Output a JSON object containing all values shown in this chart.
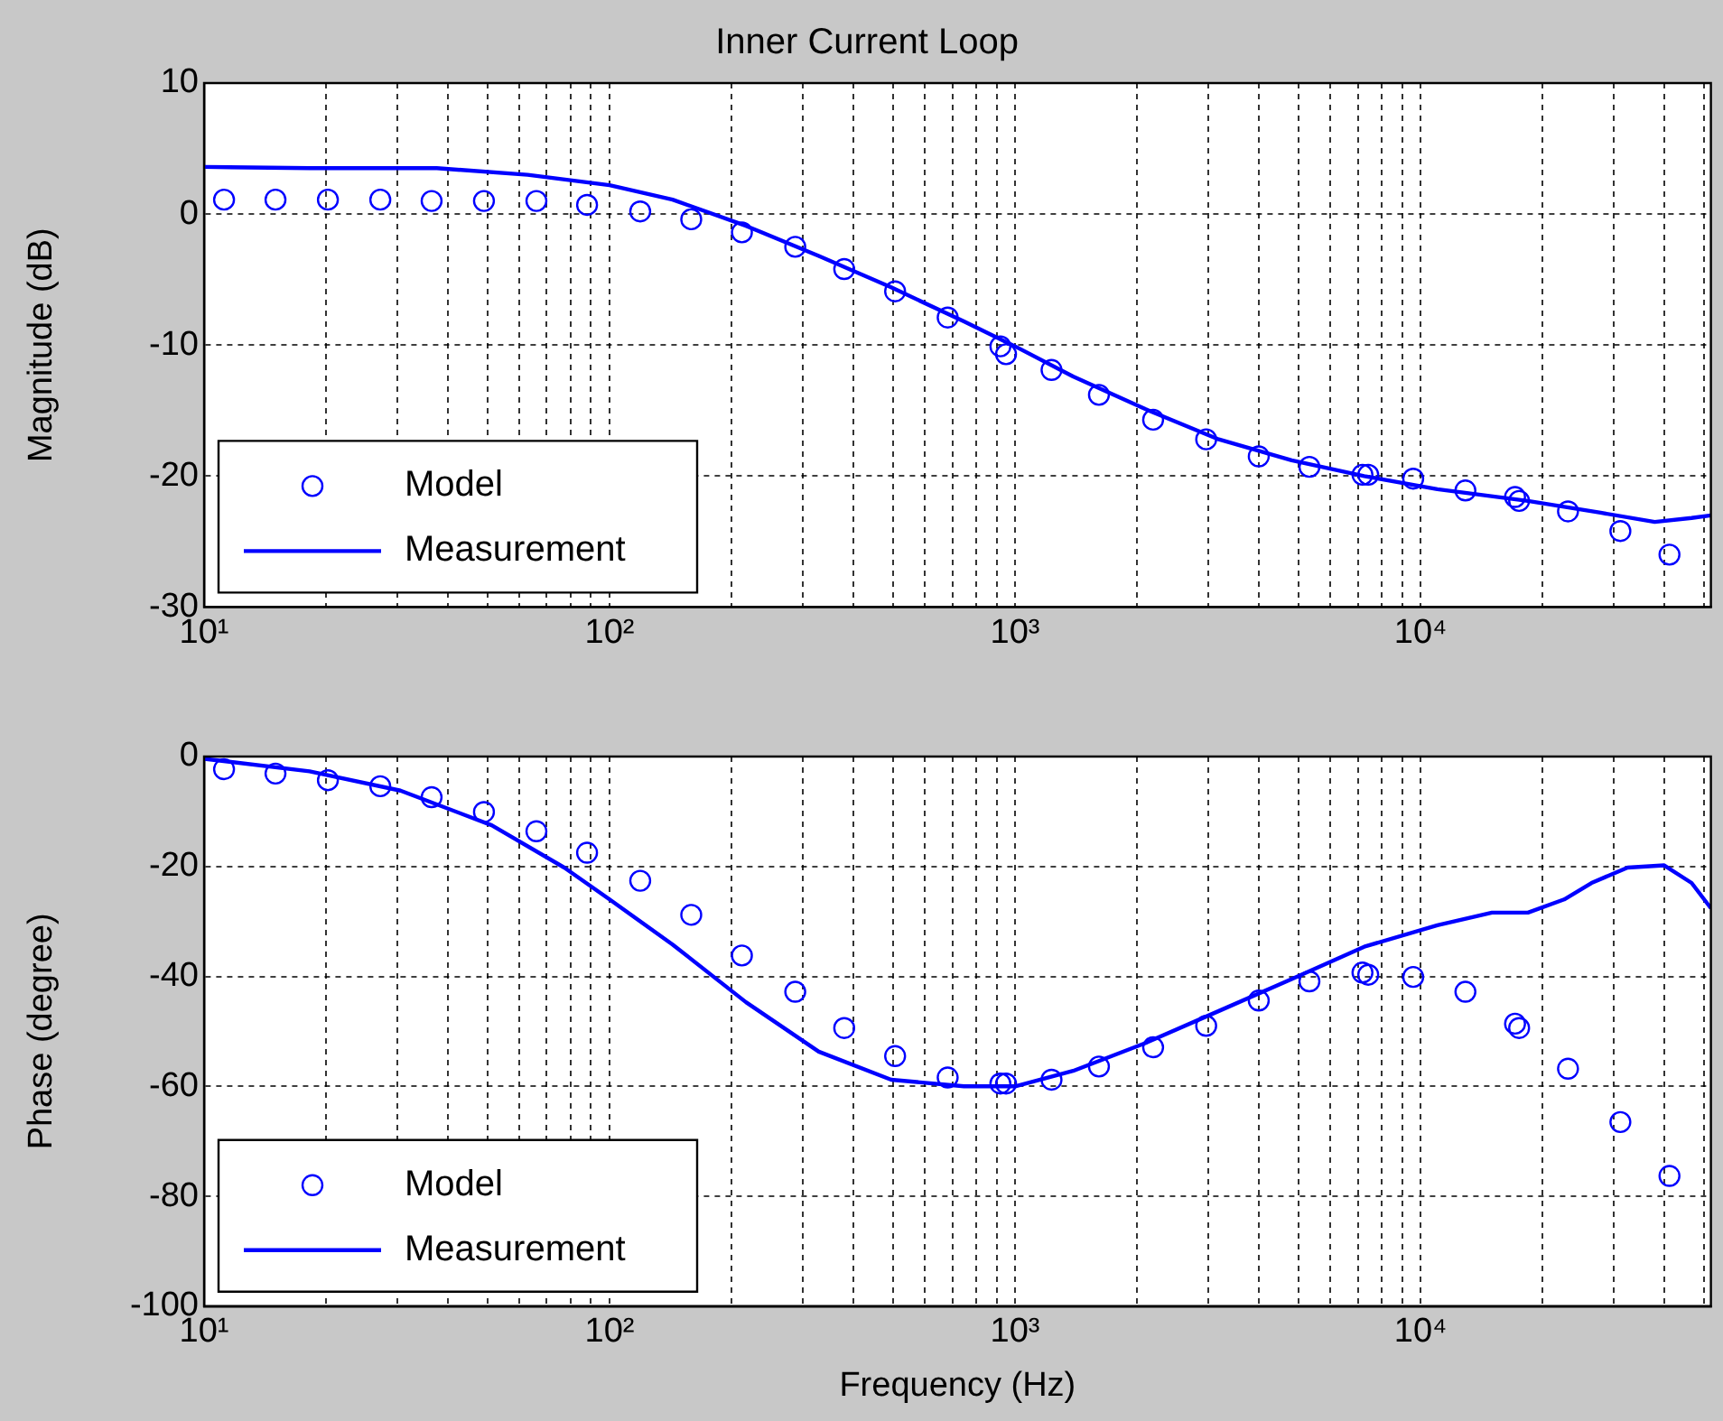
{
  "chart_data": [
    {
      "type": "line",
      "title": "Inner Current Loop",
      "ylabel": "Magnitude (dB)",
      "log": "x",
      "grid": true,
      "legend": "bottom left",
      "xlim": [
        10,
        52000
      ],
      "ylim": [
        -30,
        10
      ],
      "yticks": [
        -30,
        -20,
        -10,
        0,
        10
      ],
      "xticks": [
        {
          "value": 10,
          "label": "10¹"
        },
        {
          "value": 20,
          "label": null
        },
        {
          "value": 30,
          "label": null
        },
        {
          "value": 40,
          "label": null
        },
        {
          "value": 50,
          "label": null
        },
        {
          "value": 60,
          "label": null
        },
        {
          "value": 70,
          "label": null
        },
        {
          "value": 80,
          "label": null
        },
        {
          "value": 90,
          "label": null
        },
        {
          "value": 100,
          "label": "10²"
        },
        {
          "value": 200,
          "label": null
        },
        {
          "value": 300,
          "label": null
        },
        {
          "value": 400,
          "label": null
        },
        {
          "value": 500,
          "label": null
        },
        {
          "value": 600,
          "label": null
        },
        {
          "value": 700,
          "label": null
        },
        {
          "value": 800,
          "label": null
        },
        {
          "value": 900,
          "label": null
        },
        {
          "value": 1000,
          "label": "10³"
        },
        {
          "value": 2000,
          "label": null
        },
        {
          "value": 3000,
          "label": null
        },
        {
          "value": 4000,
          "label": null
        },
        {
          "value": 5000,
          "label": null
        },
        {
          "value": 6000,
          "label": null
        },
        {
          "value": 7000,
          "label": null
        },
        {
          "value": 8000,
          "label": null
        },
        {
          "value": 9000,
          "label": null
        },
        {
          "value": 10000,
          "label": "10⁴"
        },
        {
          "value": 20000,
          "label": null
        },
        {
          "value": 30000,
          "label": null
        },
        {
          "value": 40000,
          "label": null
        },
        {
          "value": 50000,
          "label": null
        }
      ],
      "series": [
        {
          "name": "Model",
          "type": "scatter",
          "marker": "circle",
          "color": "#0000ff",
          "x": [
            11.2,
            15,
            20.2,
            27.2,
            36.4,
            49,
            66,
            88,
            119,
            159,
            212,
            287,
            379,
            506,
            682,
            920,
            950,
            1230,
            1610,
            2190,
            2960,
            3990,
            5320,
            7190,
            7430,
            9590,
            12900,
            17100,
            17500,
            23100,
            31100,
            41100
          ],
          "values": [
            1.1,
            1.1,
            1.1,
            1.1,
            1,
            1,
            1,
            0.7,
            0.2,
            -0.4,
            -1.4,
            -2.5,
            -4.2,
            -5.9,
            -7.9,
            -10.1,
            -10.7,
            -11.9,
            -13.8,
            -15.7,
            -17.2,
            -18.5,
            -19.3,
            -19.9,
            -19.9,
            -20.2,
            -21.1,
            -21.6,
            -21.9,
            -22.7,
            -24.2,
            -26
          ]
        },
        {
          "name": "Measurement",
          "type": "line",
          "marker": "none",
          "line_style": "solid",
          "color": "#0000ff",
          "x": [
            10,
            18.2,
            37.5,
            62.8,
            100,
            143,
            217,
            328,
            495,
            748,
            1000,
            1390,
            2100,
            3180,
            4810,
            7260,
            11000,
            18400,
            27800,
            37800,
            46600,
            52000
          ],
          "values": [
            3.6,
            3.5,
            3.5,
            3,
            2.2,
            1.1,
            -0.9,
            -3.2,
            -5.6,
            -8.2,
            -10.1,
            -12.4,
            -14.9,
            -17.2,
            -18.8,
            -20,
            -21,
            -21.9,
            -22.8,
            -23.5,
            -23.2,
            -23
          ]
        }
      ]
    },
    {
      "type": "line",
      "xlabel": "Frequency (Hz)",
      "ylabel": "Phase (degree)",
      "log": "x",
      "grid": true,
      "legend": "bottom left",
      "xlim": [
        10,
        52000
      ],
      "ylim": [
        -100,
        0
      ],
      "yticks": [
        -100,
        -80,
        -60,
        -40,
        -20,
        0
      ],
      "xticks": [
        {
          "value": 10,
          "label": "10¹"
        },
        {
          "value": 20,
          "label": null
        },
        {
          "value": 30,
          "label": null
        },
        {
          "value": 40,
          "label": null
        },
        {
          "value": 50,
          "label": null
        },
        {
          "value": 60,
          "label": null
        },
        {
          "value": 70,
          "label": null
        },
        {
          "value": 80,
          "label": null
        },
        {
          "value": 90,
          "label": null
        },
        {
          "value": 100,
          "label": "10²"
        },
        {
          "value": 200,
          "label": null
        },
        {
          "value": 300,
          "label": null
        },
        {
          "value": 400,
          "label": null
        },
        {
          "value": 500,
          "label": null
        },
        {
          "value": 600,
          "label": null
        },
        {
          "value": 700,
          "label": null
        },
        {
          "value": 800,
          "label": null
        },
        {
          "value": 900,
          "label": null
        },
        {
          "value": 1000,
          "label": "10³"
        },
        {
          "value": 2000,
          "label": null
        },
        {
          "value": 3000,
          "label": null
        },
        {
          "value": 4000,
          "label": null
        },
        {
          "value": 5000,
          "label": null
        },
        {
          "value": 6000,
          "label": null
        },
        {
          "value": 7000,
          "label": null
        },
        {
          "value": 8000,
          "label": null
        },
        {
          "value": 9000,
          "label": null
        },
        {
          "value": 10000,
          "label": "10⁴"
        },
        {
          "value": 20000,
          "label": null
        },
        {
          "value": 30000,
          "label": null
        },
        {
          "value": 40000,
          "label": null
        },
        {
          "value": 50000,
          "label": null
        }
      ],
      "series": [
        {
          "name": "Model",
          "type": "scatter",
          "marker": "circle",
          "color": "#0000ff",
          "x": [
            11.2,
            15,
            20.2,
            27.2,
            36.4,
            49,
            66,
            88,
            119,
            159,
            212,
            287,
            379,
            506,
            682,
            920,
            950,
            1230,
            1610,
            2190,
            2960,
            3990,
            5320,
            7190,
            7430,
            9590,
            12900,
            17100,
            17500,
            23100,
            31100,
            41100
          ],
          "values": [
            -2.3,
            -3.1,
            -4.3,
            -5.4,
            -7.4,
            -10.1,
            -13.6,
            -17.5,
            -22.6,
            -28.8,
            -36.2,
            -42.8,
            -49.4,
            -54.5,
            -58.4,
            -59.5,
            -59.5,
            -58.8,
            -56.4,
            -52.9,
            -49,
            -44.4,
            -40.9,
            -39.3,
            -39.7,
            -40.1,
            -42.8,
            -48.6,
            -49.4,
            -56.8,
            -66.5,
            -76.3
          ]
        },
        {
          "name": "Measurement",
          "type": "line",
          "marker": "none",
          "line_style": "solid",
          "color": "#0000ff",
          "x": [
            10,
            18.2,
            30.5,
            51.2,
            77.3,
            100,
            143,
            217,
            328,
            495,
            748,
            1000,
            1390,
            2100,
            3180,
            4810,
            7260,
            11000,
            15000,
            18400,
            22600,
            26400,
            32400,
            39900,
            46600,
            52000
          ],
          "values": [
            -0.4,
            -2.7,
            -6.2,
            -12.5,
            -20.2,
            -26,
            -34.2,
            -44.7,
            -53.7,
            -58.8,
            -60,
            -60,
            -57.2,
            -52.1,
            -46.3,
            -40.5,
            -34.6,
            -30.7,
            -28.4,
            -28.4,
            -26,
            -23,
            -20.2,
            -19.8,
            -23,
            -27.6
          ]
        }
      ]
    }
  ]
}
